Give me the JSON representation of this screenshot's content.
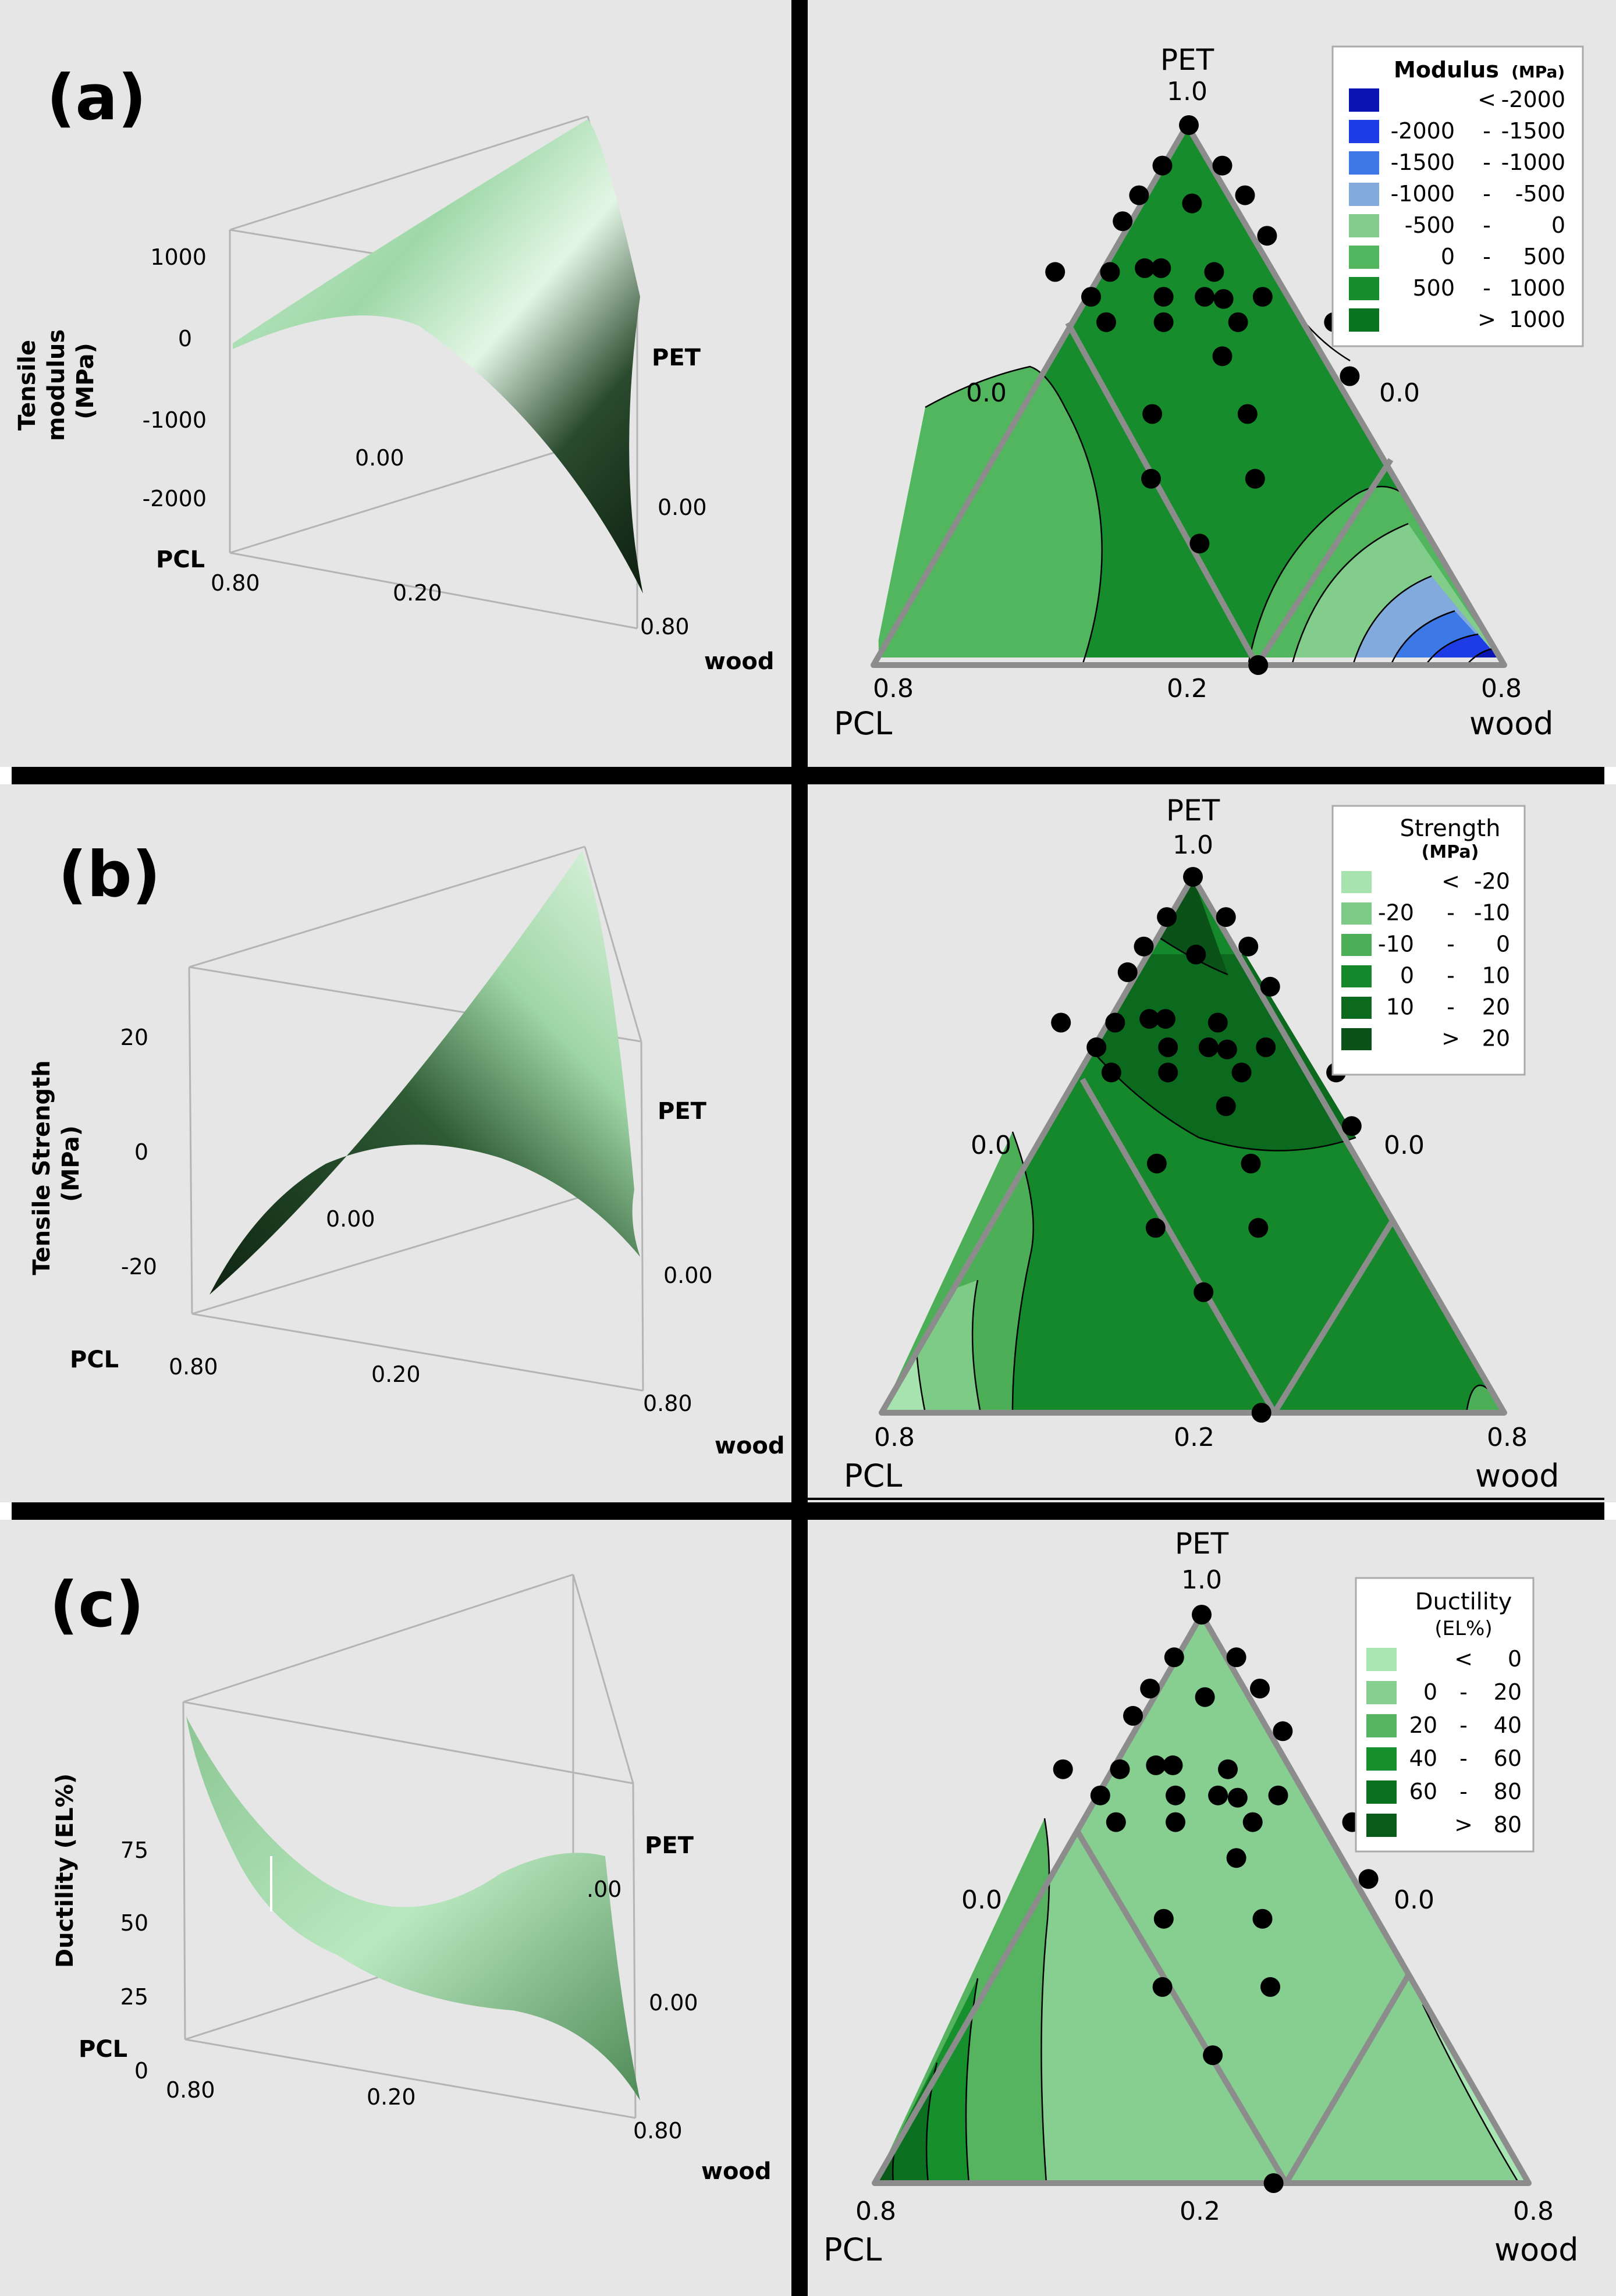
{
  "figure": {
    "colors": {
      "background": "#e6e6e6",
      "divider": "#000000",
      "edge": "#8c8c8c",
      "point": "#000000",
      "contour_line": "#000000",
      "surface_light": "#c2ecc6",
      "surface_dark": "#0f2812"
    }
  },
  "chart_data": [
    {
      "panel": "(a)",
      "type": "surface",
      "ylabel_lines": [
        "Tensile",
        "modulus",
        "(MPa)"
      ],
      "z_ticks": [
        "1000",
        "0",
        "-1000",
        "-2000"
      ],
      "zlim": [
        -2500,
        1500
      ],
      "axis_labels": {
        "pet": "PET",
        "pcl": "PCL",
        "wood": "wood"
      },
      "ticks": {
        "pet_far": "0.00",
        "pet_near": "0.00",
        "pcl": "0.80",
        "mid": "0.20",
        "wood": "0.80"
      }
    },
    {
      "panel": "(a)",
      "type": "ternary-contour",
      "vertex_labels": {
        "top": "PET",
        "left": "PCL",
        "right": "wood"
      },
      "edge_ticks": {
        "top": "1.0",
        "left_side": "0.0",
        "right_side": "0.0",
        "bottom_left": "0.8",
        "bottom_mid": "0.2",
        "bottom_right": "0.8"
      },
      "legend_title": "Modulus",
      "legend_unit": "(MPa)",
      "legend": [
        {
          "lo": "",
          "sep": "<",
          "hi": "-2000",
          "color": "#0c14b4"
        },
        {
          "lo": "-2000",
          "sep": "-",
          "hi": "-1500",
          "color": "#1e3ce6"
        },
        {
          "lo": "-1500",
          "sep": "-",
          "hi": "-1000",
          "color": "#3c78e6"
        },
        {
          "lo": "-1000",
          "sep": "-",
          "hi": "-500",
          "color": "#82aadc"
        },
        {
          "lo": "-500",
          "sep": "-",
          "hi": "0",
          "color": "#82cd8c"
        },
        {
          "lo": "0",
          "sep": "-",
          "hi": "500",
          "color": "#52b65e"
        },
        {
          "lo": "500",
          "sep": "-",
          "hi": "1000",
          "color": "#168c2c"
        },
        {
          "lo": "",
          "sep": ">",
          "hi": "1000",
          "color": "#0a7520"
        }
      ]
    },
    {
      "panel": "(b)",
      "type": "surface",
      "ylabel_lines": [
        "Tensile Strength",
        "(MPa)"
      ],
      "z_ticks": [
        "20",
        "0",
        "-20"
      ],
      "zlim": [
        -30,
        30
      ],
      "axis_labels": {
        "pet": "PET",
        "pcl": "PCL",
        "wood": "wood"
      },
      "ticks": {
        "pet_far": "0.00",
        "pet_near": "0.00",
        "pcl": "0.80",
        "mid": "0.20",
        "wood": "0.80"
      }
    },
    {
      "panel": "(b)",
      "type": "ternary-contour",
      "vertex_labels": {
        "top": "PET",
        "left": "PCL",
        "right": "wood"
      },
      "edge_ticks": {
        "top": "1.0",
        "left_side": "0.0",
        "right_side": "0.0",
        "bottom_left": "0.8",
        "bottom_mid": "0.2",
        "bottom_right": "0.8"
      },
      "legend_title": "Strength",
      "legend_unit": "(MPa)",
      "legend": [
        {
          "lo": "",
          "sep": "<",
          "hi": "-20",
          "color": "#a6e3ae"
        },
        {
          "lo": "-20",
          "sep": "-",
          "hi": "-10",
          "color": "#7ecb88"
        },
        {
          "lo": "-10",
          "sep": "-",
          "hi": "0",
          "color": "#4caf57"
        },
        {
          "lo": "0",
          "sep": "-",
          "hi": "10",
          "color": "#14882a"
        },
        {
          "lo": "10",
          "sep": "-",
          "hi": "20",
          "color": "#0b6a1e"
        },
        {
          "lo": "",
          "sep": ">",
          "hi": "20",
          "color": "#0a5218"
        }
      ]
    },
    {
      "panel": "(c)",
      "type": "surface",
      "ylabel_lines": [
        "Ductility (EL%)"
      ],
      "z_ticks": [
        "75",
        "50",
        "25",
        "0"
      ],
      "zlim": [
        -10,
        90
      ],
      "axis_labels": {
        "pet": "PET",
        "pcl": "PCL",
        "wood": "wood"
      },
      "ticks": {
        "pet_far": ".00",
        "pet_near": "0.00",
        "pcl": "0.80",
        "mid": "0.20",
        "wood": "0.80"
      }
    },
    {
      "panel": "(c)",
      "type": "ternary-contour",
      "vertex_labels": {
        "top": "PET",
        "left": "PCL",
        "right": "wood"
      },
      "edge_ticks": {
        "top": "1.0",
        "left_side": "0.0",
        "right_side": "0.0",
        "bottom_left": "0.8",
        "bottom_mid": "0.2",
        "bottom_right": "0.8"
      },
      "legend_title": "Ductility",
      "legend_unit": "(EL%)",
      "legend": [
        {
          "lo": "",
          "sep": "<",
          "hi": "0",
          "color": "#a8e6b4"
        },
        {
          "lo": "0",
          "sep": "-",
          "hi": "20",
          "color": "#86cf90"
        },
        {
          "lo": "20",
          "sep": "-",
          "hi": "40",
          "color": "#56b461"
        },
        {
          "lo": "40",
          "sep": "-",
          "hi": "60",
          "color": "#16902c"
        },
        {
          "lo": "60",
          "sep": "-",
          "hi": "80",
          "color": "#0b7020"
        },
        {
          "lo": "",
          "sep": ">",
          "hi": "80",
          "color": "#0a5a1a"
        }
      ]
    }
  ]
}
